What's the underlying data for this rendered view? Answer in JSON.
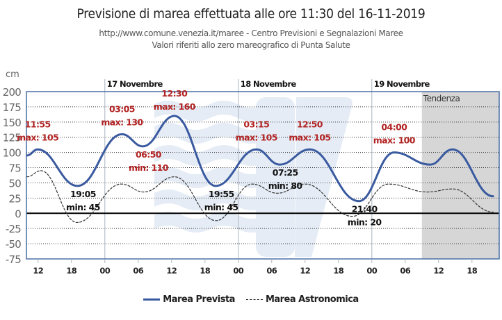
{
  "header": {
    "title": "Previsione di marea effettuata alle ore 11:30 del 16-11-2019",
    "subtitle1": "http://www.comune.venezia.it/maree - Centro Previsioni e Segnalazioni Maree",
    "subtitle2": "Valori riferiti allo zero mareografico di Punta Salute"
  },
  "colors": {
    "forecast": "#3a5aa0",
    "astronomical": "#333333",
    "max_label": "#b22222",
    "min_label": "#111111",
    "tendenza_bg": "#d6d6d6",
    "watermark": "#e3ebf4"
  },
  "chart_data": {
    "type": "line",
    "title": "Previsione di marea effettuata alle ore 11:30 del 16-11-2019",
    "ylabel": "cm",
    "xlabel": "",
    "x_unit": "hours relative to 00:00 of 17 Novembre",
    "xlim": [
      -14.1,
      70.9
    ],
    "ylim": [
      -75,
      200
    ],
    "yticks": [
      200,
      175,
      150,
      125,
      100,
      75,
      50,
      25,
      0,
      -25,
      -50,
      -75
    ],
    "xticks": [
      {
        "x": -12,
        "label": "12"
      },
      {
        "x": -6,
        "label": "18"
      },
      {
        "x": 0,
        "label": "00"
      },
      {
        "x": 6,
        "label": "06"
      },
      {
        "x": 12,
        "label": "12"
      },
      {
        "x": 18,
        "label": "18"
      },
      {
        "x": 24,
        "label": "00"
      },
      {
        "x": 30,
        "label": "06"
      },
      {
        "x": 36,
        "label": "12"
      },
      {
        "x": 42,
        "label": "18"
      },
      {
        "x": 48,
        "label": "00"
      },
      {
        "x": 54,
        "label": "06"
      },
      {
        "x": 60,
        "label": "12"
      },
      {
        "x": 66,
        "label": "18"
      }
    ],
    "day_labels": [
      {
        "x": 0,
        "label": "17 Novembre"
      },
      {
        "x": 24,
        "label": "18 Novembre"
      },
      {
        "x": 48,
        "label": "19 Novembre"
      }
    ],
    "tendenza": {
      "label": "Tendenza",
      "from": 57.0,
      "to": 70.9
    },
    "grid": "horizontal dotted",
    "legend": "bottom",
    "series": [
      {
        "name": "Marea Prevista",
        "style": "solid",
        "points": [
          [
            -14.0,
            95
          ],
          [
            -12.08,
            105
          ],
          [
            -4.92,
            45
          ],
          [
            3.08,
            130
          ],
          [
            6.83,
            110
          ],
          [
            12.5,
            160
          ],
          [
            19.92,
            45
          ],
          [
            27.25,
            105
          ],
          [
            31.42,
            80
          ],
          [
            36.83,
            105
          ],
          [
            45.67,
            20
          ],
          [
            52.0,
            100
          ],
          [
            58.5,
            80
          ],
          [
            62.5,
            105
          ],
          [
            69.8,
            28
          ]
        ]
      },
      {
        "name": "Marea Astronomica",
        "style": "dashed",
        "points": [
          [
            -14.0,
            60
          ],
          [
            -11.5,
            70
          ],
          [
            -5.0,
            -15
          ],
          [
            3.0,
            48
          ],
          [
            7.0,
            35
          ],
          [
            12.5,
            60
          ],
          [
            20.0,
            -12
          ],
          [
            26.5,
            48
          ],
          [
            31.0,
            33
          ],
          [
            36.0,
            48
          ],
          [
            44.5,
            -5
          ],
          [
            51.0,
            48
          ],
          [
            58.0,
            35
          ],
          [
            62.5,
            40
          ],
          [
            69.8,
            2
          ]
        ]
      }
    ],
    "annotations": [
      {
        "kind": "max",
        "time": "11:55",
        "text": "max: 105",
        "x": -12.08,
        "y": 105,
        "anchor": "above"
      },
      {
        "kind": "min",
        "time": "19:05",
        "text": "min: 45",
        "x": -4.92,
        "y": 45,
        "anchor": "below"
      },
      {
        "kind": "max",
        "time": "03:05",
        "text": "max: 130",
        "x": 3.08,
        "y": 130,
        "anchor": "above"
      },
      {
        "kind": "min",
        "time": "06:50",
        "text": "min: 110",
        "x": 6.83,
        "y": 110,
        "anchor": "below",
        "color": "max"
      },
      {
        "kind": "max",
        "time": "12:30",
        "text": "max: 160",
        "x": 12.5,
        "y": 160,
        "anchor": "above"
      },
      {
        "kind": "min",
        "time": "19:55",
        "text": "min: 45",
        "x": 19.92,
        "y": 45,
        "anchor": "below"
      },
      {
        "kind": "max",
        "time": "03:15",
        "text": "max: 105",
        "x": 27.25,
        "y": 105,
        "anchor": "above"
      },
      {
        "kind": "min",
        "time": "07:25",
        "text": "min: 80",
        "x": 31.42,
        "y": 80,
        "anchor": "below"
      },
      {
        "kind": "max",
        "time": "12:50",
        "text": "max: 105",
        "x": 36.83,
        "y": 105,
        "anchor": "above"
      },
      {
        "kind": "min",
        "time": "21:40",
        "text": "min: 20",
        "x": 45.67,
        "y": 20,
        "anchor": "below"
      },
      {
        "kind": "max",
        "time": "04:00",
        "text": "max: 100",
        "x": 52.0,
        "y": 100,
        "anchor": "above"
      }
    ]
  },
  "legend": {
    "items": [
      {
        "label": "Marea Prevista",
        "style": "solid"
      },
      {
        "label": "Marea Astronomica",
        "style": "dashed"
      }
    ]
  }
}
